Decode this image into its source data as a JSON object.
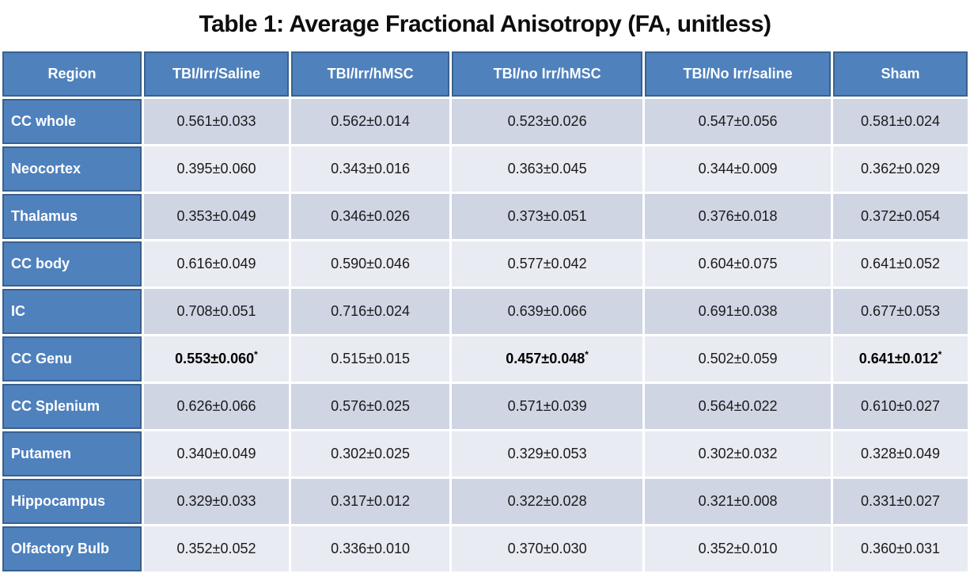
{
  "title": "Table 1: Average Fractional Anisotropy (FA, unitless)",
  "colors": {
    "header_blue": "#4f81bd",
    "header_border_blue": "#39618f",
    "band_dark": "#d0d5e4",
    "band_light": "#e9ebf3",
    "header_text": "#ffffff",
    "body_text": "#1a1a1a"
  },
  "chart_data": {
    "type": "table",
    "title": "Table 1: Average Fractional Anisotropy (FA, unitless)",
    "columns": [
      "Region",
      "TBI/Irr/Saline",
      "TBI/Irr/hMSC",
      "TBI/no Irr/hMSC",
      "TBI/No Irr/saline",
      "Sham"
    ],
    "rows": [
      {
        "region": "CC whole",
        "cells": [
          {
            "v": "0.561±0.033"
          },
          {
            "v": "0.562±0.014"
          },
          {
            "v": "0.523±0.026"
          },
          {
            "v": "0.547±0.056"
          },
          {
            "v": "0.581±0.024"
          }
        ]
      },
      {
        "region": "Neocortex",
        "cells": [
          {
            "v": "0.395±0.060"
          },
          {
            "v": "0.343±0.016"
          },
          {
            "v": "0.363±0.045"
          },
          {
            "v": "0.344±0.009"
          },
          {
            "v": "0.362±0.029"
          }
        ]
      },
      {
        "region": "Thalamus",
        "cells": [
          {
            "v": "0.353±0.049"
          },
          {
            "v": "0.346±0.026"
          },
          {
            "v": "0.373±0.051"
          },
          {
            "v": "0.376±0.018"
          },
          {
            "v": "0.372±0.054"
          }
        ]
      },
      {
        "region": "CC body",
        "cells": [
          {
            "v": "0.616±0.049"
          },
          {
            "v": "0.590±0.046"
          },
          {
            "v": "0.577±0.042"
          },
          {
            "v": "0.604±0.075"
          },
          {
            "v": "0.641±0.052"
          }
        ]
      },
      {
        "region": "IC",
        "cells": [
          {
            "v": "0.708±0.051"
          },
          {
            "v": "0.716±0.024"
          },
          {
            "v": "0.639±0.066"
          },
          {
            "v": "0.691±0.038"
          },
          {
            "v": "0.677±0.053"
          }
        ]
      },
      {
        "region": "CC Genu",
        "cells": [
          {
            "v": "0.553±0.060",
            "star": "*",
            "bold": true
          },
          {
            "v": "0.515±0.015"
          },
          {
            "v": "0.457±0.048",
            "star": "*",
            "bold": true
          },
          {
            "v": "0.502±0.059"
          },
          {
            "v": "0.641±0.012",
            "star": "*",
            "bold": true
          }
        ]
      },
      {
        "region": "CC Splenium",
        "cells": [
          {
            "v": "0.626±0.066"
          },
          {
            "v": "0.576±0.025"
          },
          {
            "v": "0.571±0.039"
          },
          {
            "v": "0.564±0.022"
          },
          {
            "v": "0.610±0.027"
          }
        ]
      },
      {
        "region": "Putamen",
        "cells": [
          {
            "v": "0.340±0.049"
          },
          {
            "v": "0.302±0.025"
          },
          {
            "v": "0.329±0.053"
          },
          {
            "v": "0.302±0.032"
          },
          {
            "v": "0.328±0.049"
          }
        ]
      },
      {
        "region": "Hippocampus",
        "cells": [
          {
            "v": "0.329±0.033"
          },
          {
            "v": "0.317±0.012"
          },
          {
            "v": "0.322±0.028"
          },
          {
            "v": "0.321±0.008"
          },
          {
            "v": "0.331±0.027"
          }
        ]
      },
      {
        "region": "Olfactory Bulb",
        "cells": [
          {
            "v": "0.352±0.052"
          },
          {
            "v": "0.336±0.010"
          },
          {
            "v": "0.370±0.030"
          },
          {
            "v": "0.352±0.010"
          },
          {
            "v": "0.360±0.031"
          }
        ]
      }
    ]
  }
}
